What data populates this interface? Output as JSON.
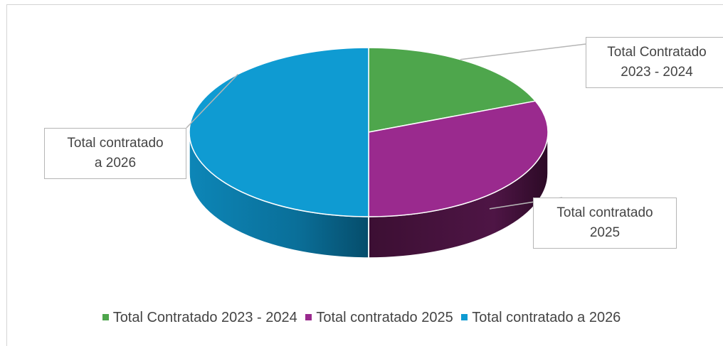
{
  "chart_data": {
    "type": "pie",
    "style": "3d",
    "title": "",
    "legend_position": "bottom",
    "slices": [
      {
        "label": "Total Contratado 2023 - 2024",
        "callout": [
          "Total Contratado",
          "2023 - 2024"
        ],
        "value": 19,
        "color": "#4ea64c",
        "side_color": "#2e6b2d"
      },
      {
        "label": "Total contratado 2025",
        "callout": [
          "Total contratado",
          "2025"
        ],
        "value": 31,
        "color": "#9a2a8e",
        "side_color": "#4a1340"
      },
      {
        "label": "Total contratado a 2026",
        "callout": [
          "Total contratado",
          "a 2026"
        ],
        "value": 50,
        "color": "#0f9bd2",
        "side_color": "#0b6d95"
      }
    ]
  }
}
